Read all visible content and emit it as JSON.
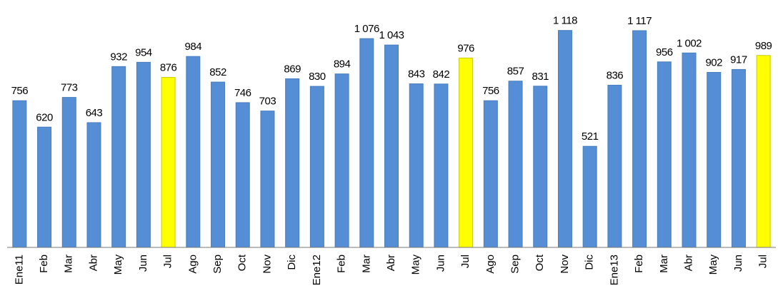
{
  "chart_data": {
    "type": "bar",
    "categories": [
      "Ene11",
      "Feb",
      "Mar",
      "Abr",
      "May",
      "Jun",
      "Jul",
      "Ago",
      "Sep",
      "Oct",
      "Nov",
      "Dic",
      "Ene12",
      "Feb",
      "Mar",
      "Abr",
      "May",
      "Jun",
      "Jul",
      "Ago",
      "Sep",
      "Oct",
      "Nov",
      "Dic",
      "Ene13",
      "Feb",
      "Mar",
      "Abr",
      "May",
      "Jun",
      "Jul"
    ],
    "values": [
      756,
      620,
      773,
      643,
      932,
      954,
      876,
      984,
      852,
      746,
      703,
      869,
      830,
      894,
      1076,
      1043,
      843,
      842,
      976,
      756,
      857,
      831,
      1118,
      521,
      836,
      1117,
      956,
      1002,
      902,
      917,
      989
    ],
    "value_labels": [
      "756",
      "620",
      "773",
      "643",
      "932",
      "954",
      "876",
      "984",
      "852",
      "746",
      "703",
      "869",
      "830",
      "894",
      "1 076",
      "1 043",
      "843",
      "842",
      "976",
      "756",
      "857",
      "831",
      "1 118",
      "521",
      "836",
      "1 117",
      "956",
      "1 002",
      "902",
      "917",
      "989"
    ],
    "colors": [
      "#558ed5",
      "#558ed5",
      "#558ed5",
      "#558ed5",
      "#558ed5",
      "#558ed5",
      "#ffff00",
      "#558ed5",
      "#558ed5",
      "#558ed5",
      "#558ed5",
      "#558ed5",
      "#558ed5",
      "#558ed5",
      "#558ed5",
      "#558ed5",
      "#558ed5",
      "#558ed5",
      "#ffff00",
      "#558ed5",
      "#558ed5",
      "#558ed5",
      "#558ed5",
      "#558ed5",
      "#558ed5",
      "#558ed5",
      "#558ed5",
      "#558ed5",
      "#558ed5",
      "#558ed5",
      "#ffff00"
    ],
    "ylim": [
      0,
      1150
    ]
  }
}
